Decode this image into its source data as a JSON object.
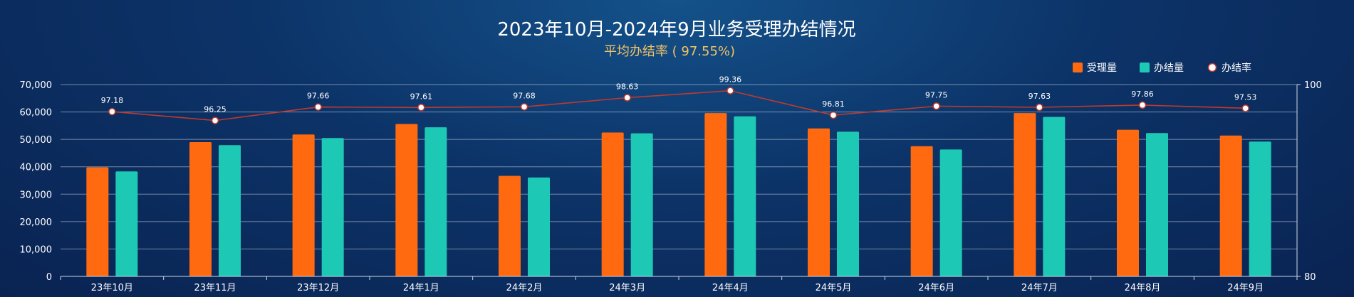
{
  "chart_data": {
    "type": "bar",
    "title": "2023年10月-2024年9月业务受理办结情况",
    "subtitle": "平均办结率 ( 97.55%)",
    "categories": [
      "23年10月",
      "23年11月",
      "23年12月",
      "24年1月",
      "24年2月",
      "24年3月",
      "24年4月",
      "24年5月",
      "24年6月",
      "24年7月",
      "24年8月",
      "24年9月"
    ],
    "series": [
      {
        "name": "受理量",
        "type": "bar",
        "axis": "left",
        "color": "#ff6a10",
        "values": [
          39800,
          49000,
          51800,
          55600,
          36700,
          52500,
          59600,
          54000,
          47500,
          59600,
          53500,
          51400
        ]
      },
      {
        "name": "办结量",
        "type": "bar",
        "axis": "left",
        "color": "#1dc8b5",
        "values": [
          38300,
          47900,
          50500,
          54400,
          36100,
          52200,
          58400,
          52800,
          46300,
          58200,
          52300,
          49200
        ]
      },
      {
        "name": "办结率",
        "type": "line",
        "axis": "right",
        "color": "#c0392b",
        "values": [
          97.18,
          96.25,
          97.66,
          97.61,
          97.68,
          98.63,
          99.36,
          96.81,
          97.75,
          97.63,
          97.86,
          97.53
        ]
      }
    ],
    "y_left": {
      "min": 0,
      "max": 70000,
      "ticks": [
        "0",
        "10,000",
        "20,000",
        "30,000",
        "40,000",
        "50,000",
        "60,000",
        "70,000"
      ]
    },
    "y_right": {
      "min": 80,
      "max": 100,
      "ticks": [
        "80",
        "100"
      ]
    },
    "grid": true,
    "legend_position": "top-right"
  }
}
